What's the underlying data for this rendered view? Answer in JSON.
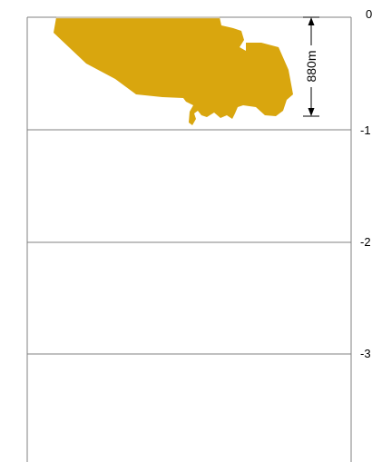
{
  "colors": {
    "background": "#ffffff",
    "frame": "#808080",
    "gridline": "#808080",
    "body_fill": "#d9a60e",
    "body_top_edge": "#cfc7b3",
    "dimension": "#000000"
  },
  "depth_axis": {
    "ticks": [
      {
        "label": "0"
      },
      {
        "label": "-1"
      },
      {
        "label": "-2"
      },
      {
        "label": "-3"
      }
    ]
  },
  "dimension": {
    "label": "880m"
  }
}
